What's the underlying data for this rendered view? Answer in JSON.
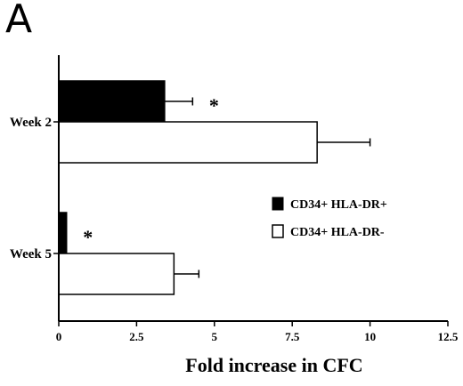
{
  "panel_label": "A",
  "chart_data": {
    "type": "bar",
    "orientation": "horizontal",
    "categories": [
      "Week 2",
      "Week 5"
    ],
    "series": [
      {
        "name": "CD34+ HLA-DR+",
        "fill": "#000000",
        "values": [
          3.4,
          0.25
        ],
        "errors": [
          0.9,
          null
        ],
        "significance": [
          "*",
          "*"
        ]
      },
      {
        "name": "CD34+ HLA-DR-",
        "fill": "#ffffff",
        "values": [
          8.3,
          3.7
        ],
        "errors": [
          1.7,
          0.8
        ],
        "significance": [
          "",
          ""
        ]
      }
    ],
    "xlabel": "Fold increase in CFC",
    "ylabel": "",
    "xlim": [
      0,
      12.5
    ],
    "xticks": [
      0,
      2.5,
      5,
      7.5,
      10,
      12.5
    ],
    "xtick_labels": [
      "0",
      "2.5",
      "5",
      "7.5",
      "10",
      "12.5"
    ],
    "legend": {
      "placement": "right"
    },
    "grid": false
  }
}
